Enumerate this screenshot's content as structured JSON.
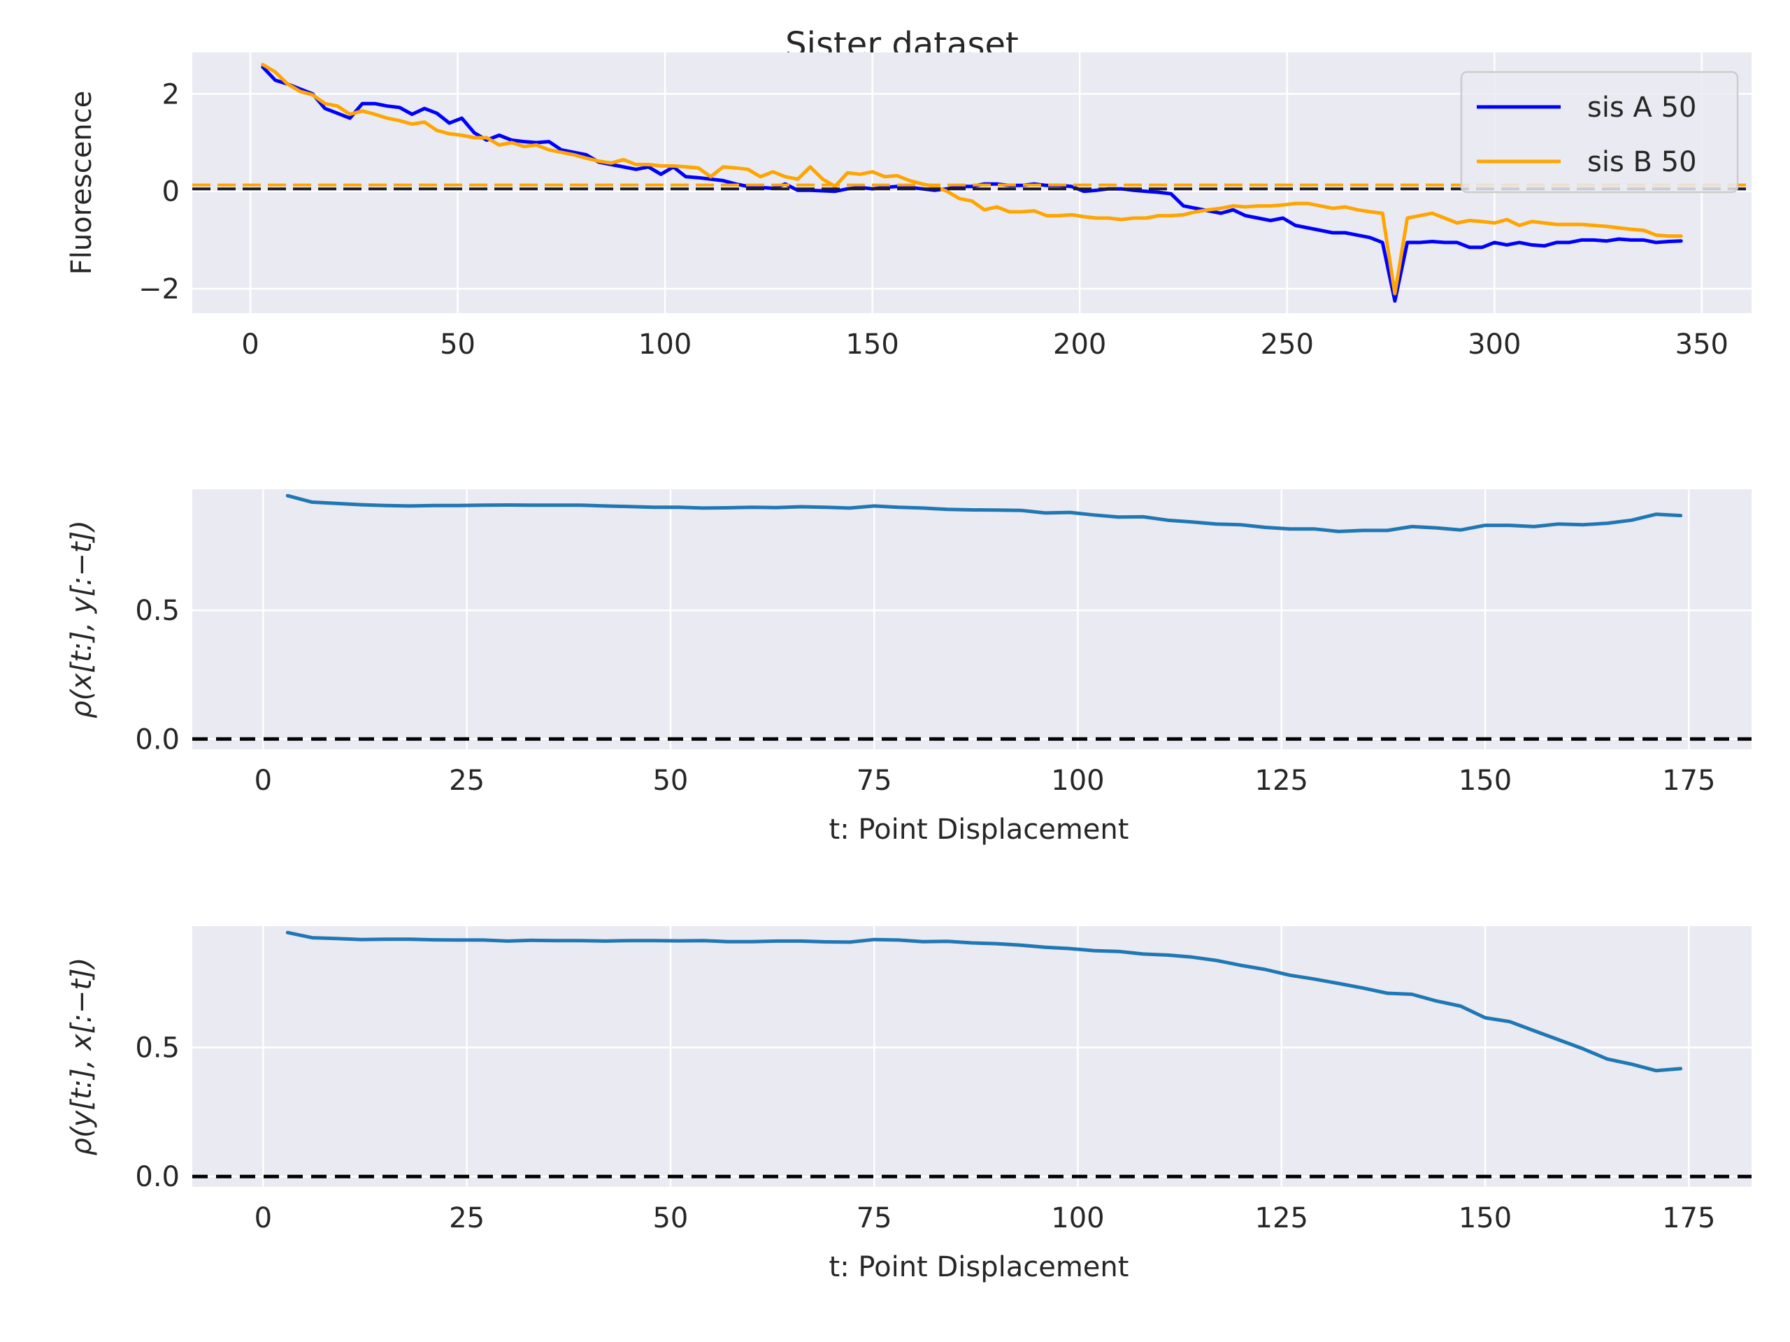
{
  "figure_title": "Sister dataset",
  "colors": {
    "axes_bg": "#eaeaf2",
    "grid": "#ffffff",
    "sis_a": "#0000ff",
    "sis_b": "#ffa500",
    "corr": "#1f77b4",
    "zero_line": "#000000"
  },
  "chart_data": [
    {
      "type": "line",
      "title": "",
      "xlabel": "",
      "ylabel": "Fluorescence",
      "xlim": [
        -14,
        362
      ],
      "ylim": [
        -2.5,
        2.85
      ],
      "xticks": [
        0,
        50,
        100,
        150,
        200,
        250,
        300,
        350
      ],
      "yticks": [
        -2,
        0,
        2
      ],
      "grid": true,
      "legend_position": "upper-right",
      "reference_lines": [
        {
          "y": 0.05,
          "color": "#1a1a2e",
          "style": "dashed"
        },
        {
          "y": 0.13,
          "color": "#ffa500",
          "style": "dashed"
        }
      ],
      "series": [
        {
          "name": "sis A 50",
          "color": "#0000ff",
          "x": [
            3,
            6,
            9,
            12,
            15,
            18,
            21,
            24,
            27,
            30,
            33,
            36,
            39,
            42,
            45,
            48,
            51,
            54,
            57,
            60,
            63,
            66,
            69,
            72,
            75,
            78,
            81,
            84,
            87,
            90,
            93,
            96,
            99,
            102,
            105,
            108,
            111,
            114,
            117,
            120,
            123,
            126,
            129,
            132,
            135,
            138,
            141,
            144,
            147,
            150,
            153,
            156,
            159,
            162,
            165,
            168,
            171,
            174,
            177,
            180,
            183,
            186,
            189,
            192,
            195,
            198,
            201,
            204,
            207,
            210,
            213,
            216,
            219,
            222,
            225,
            228,
            231,
            234,
            237,
            240,
            243,
            246,
            249,
            252,
            255,
            258,
            261,
            264,
            267,
            270,
            273,
            276,
            279,
            282,
            285,
            288,
            291,
            294,
            297,
            300,
            303,
            306,
            309,
            312,
            315,
            318,
            321,
            324,
            327,
            330,
            333,
            336,
            339,
            342,
            345
          ],
          "y": [
            2.55,
            2.28,
            2.2,
            2.1,
            2.0,
            1.7,
            1.6,
            1.5,
            1.8,
            1.8,
            1.75,
            1.72,
            1.58,
            1.7,
            1.6,
            1.4,
            1.5,
            1.2,
            1.05,
            1.15,
            1.05,
            1.02,
            1.0,
            1.02,
            0.85,
            0.8,
            0.75,
            0.6,
            0.55,
            0.5,
            0.45,
            0.5,
            0.35,
            0.5,
            0.3,
            0.28,
            0.25,
            0.22,
            0.15,
            0.1,
            0.08,
            0.06,
            0.15,
            0.02,
            0.02,
            0.01,
            0.0,
            0.05,
            0.08,
            0.05,
            0.08,
            0.1,
            0.08,
            0.05,
            0.02,
            0.05,
            0.1,
            0.1,
            0.15,
            0.15,
            0.12,
            0.12,
            0.15,
            0.12,
            0.12,
            0.1,
            0.0,
            0.02,
            0.05,
            0.05,
            0.02,
            0.0,
            -0.02,
            -0.05,
            -0.3,
            -0.35,
            -0.4,
            -0.45,
            -0.38,
            -0.5,
            -0.55,
            -0.6,
            -0.55,
            -0.7,
            -0.75,
            -0.8,
            -0.85,
            -0.85,
            -0.9,
            -0.95,
            -1.05,
            -2.25,
            -1.05,
            -1.05,
            -1.03,
            -1.05,
            -1.05,
            -1.15,
            -1.15,
            -1.05,
            -1.1,
            -1.05,
            -1.1,
            -1.12,
            -1.05,
            -1.05,
            -1.0,
            -1.0,
            -1.02,
            -0.98,
            -1.0,
            -1.0,
            -1.05,
            -1.03,
            -1.02
          ]
        },
        {
          "name": "sis B 50",
          "color": "#ffa500",
          "x": [
            3,
            6,
            9,
            12,
            15,
            18,
            21,
            24,
            27,
            30,
            33,
            36,
            39,
            42,
            45,
            48,
            51,
            54,
            57,
            60,
            63,
            66,
            69,
            72,
            75,
            78,
            81,
            84,
            87,
            90,
            93,
            96,
            99,
            102,
            105,
            108,
            111,
            114,
            117,
            120,
            123,
            126,
            129,
            132,
            135,
            138,
            141,
            144,
            147,
            150,
            153,
            156,
            159,
            162,
            165,
            168,
            171,
            174,
            177,
            180,
            183,
            186,
            189,
            192,
            195,
            198,
            201,
            204,
            207,
            210,
            213,
            216,
            219,
            222,
            225,
            228,
            231,
            234,
            237,
            240,
            243,
            246,
            249,
            252,
            255,
            258,
            261,
            264,
            267,
            270,
            273,
            276,
            279,
            282,
            285,
            288,
            291,
            294,
            297,
            300,
            303,
            306,
            309,
            312,
            315,
            318,
            321,
            324,
            327,
            330,
            333,
            336,
            339,
            342,
            345
          ],
          "y": [
            2.6,
            2.45,
            2.2,
            2.05,
            1.98,
            1.8,
            1.75,
            1.58,
            1.65,
            1.58,
            1.5,
            1.45,
            1.38,
            1.42,
            1.25,
            1.18,
            1.15,
            1.1,
            1.1,
            0.95,
            1.0,
            0.92,
            0.95,
            0.85,
            0.8,
            0.75,
            0.68,
            0.62,
            0.58,
            0.65,
            0.55,
            0.55,
            0.52,
            0.52,
            0.5,
            0.48,
            0.3,
            0.5,
            0.48,
            0.45,
            0.3,
            0.4,
            0.3,
            0.25,
            0.5,
            0.25,
            0.1,
            0.38,
            0.35,
            0.4,
            0.3,
            0.32,
            0.22,
            0.15,
            0.1,
            0.0,
            -0.15,
            -0.2,
            -0.38,
            -0.32,
            -0.42,
            -0.42,
            -0.4,
            -0.5,
            -0.5,
            -0.48,
            -0.52,
            -0.55,
            -0.55,
            -0.58,
            -0.55,
            -0.55,
            -0.5,
            -0.5,
            -0.48,
            -0.42,
            -0.38,
            -0.35,
            -0.3,
            -0.32,
            -0.3,
            -0.3,
            -0.28,
            -0.25,
            -0.25,
            -0.3,
            -0.35,
            -0.32,
            -0.38,
            -0.42,
            -0.45,
            -2.1,
            -0.55,
            -0.5,
            -0.45,
            -0.55,
            -0.65,
            -0.6,
            -0.62,
            -0.65,
            -0.58,
            -0.7,
            -0.62,
            -0.65,
            -0.68,
            -0.68,
            -0.68,
            -0.7,
            -0.72,
            -0.75,
            -0.78,
            -0.8,
            -0.9,
            -0.92,
            -0.92
          ]
        }
      ]
    },
    {
      "type": "line",
      "title": "",
      "xlabel": "t: Point Displacement",
      "ylabel": "ρ(x[t:], y[:−t])",
      "xlim": [
        -8.7,
        182.7
      ],
      "ylim": [
        -0.04,
        0.97
      ],
      "xticks": [
        0,
        25,
        50,
        75,
        100,
        125,
        150,
        175
      ],
      "yticks": [
        0.0,
        0.5
      ],
      "yticklabels": [
        "0.0",
        "0.5"
      ],
      "grid": true,
      "reference_lines": [
        {
          "y": 0.0,
          "color": "#000000",
          "style": "dashed"
        }
      ],
      "series": [
        {
          "color": "#1f77b4",
          "x": [
            3,
            6,
            9,
            12,
            15,
            18,
            21,
            24,
            27,
            30,
            33,
            36,
            39,
            42,
            45,
            48,
            51,
            54,
            57,
            60,
            63,
            66,
            69,
            72,
            75,
            78,
            81,
            84,
            87,
            90,
            93,
            96,
            99,
            102,
            105,
            108,
            111,
            114,
            117,
            120,
            123,
            126,
            129,
            132,
            135,
            138,
            141,
            144,
            147,
            150,
            153,
            156,
            159,
            162,
            165,
            168,
            171,
            174
          ],
          "y": [
            0.945,
            0.92,
            0.915,
            0.91,
            0.907,
            0.905,
            0.907,
            0.907,
            0.908,
            0.909,
            0.908,
            0.908,
            0.908,
            0.905,
            0.903,
            0.9,
            0.9,
            0.897,
            0.898,
            0.9,
            0.899,
            0.902,
            0.9,
            0.897,
            0.905,
            0.9,
            0.897,
            0.892,
            0.89,
            0.889,
            0.888,
            0.878,
            0.88,
            0.87,
            0.862,
            0.863,
            0.85,
            0.843,
            0.835,
            0.832,
            0.822,
            0.816,
            0.816,
            0.806,
            0.81,
            0.81,
            0.825,
            0.82,
            0.812,
            0.83,
            0.83,
            0.825,
            0.835,
            0.832,
            0.838,
            0.85,
            0.873,
            0.868
          ]
        }
      ]
    },
    {
      "type": "line",
      "title": "",
      "xlabel": "t: Point Displacement",
      "ylabel": "ρ(y[t:], x[:−t])",
      "xlim": [
        -8.7,
        182.7
      ],
      "ylim": [
        -0.04,
        0.97
      ],
      "xticks": [
        0,
        25,
        50,
        75,
        100,
        125,
        150,
        175
      ],
      "yticks": [
        0.0,
        0.5
      ],
      "yticklabels": [
        "0.0",
        "0.5"
      ],
      "grid": true,
      "reference_lines": [
        {
          "y": 0.0,
          "color": "#000000",
          "style": "dashed"
        }
      ],
      "series": [
        {
          "color": "#1f77b4",
          "x": [
            3,
            6,
            9,
            12,
            15,
            18,
            21,
            24,
            27,
            30,
            33,
            36,
            39,
            42,
            45,
            48,
            51,
            54,
            57,
            60,
            63,
            66,
            69,
            72,
            75,
            78,
            81,
            84,
            87,
            90,
            93,
            96,
            99,
            102,
            105,
            108,
            111,
            114,
            117,
            120,
            123,
            126,
            129,
            132,
            135,
            138,
            141,
            144,
            147,
            150,
            153,
            156,
            159,
            162,
            165,
            168,
            171,
            174
          ],
          "y": [
            0.945,
            0.925,
            0.922,
            0.918,
            0.919,
            0.919,
            0.917,
            0.916,
            0.916,
            0.912,
            0.915,
            0.914,
            0.914,
            0.912,
            0.914,
            0.914,
            0.913,
            0.914,
            0.91,
            0.91,
            0.912,
            0.912,
            0.909,
            0.908,
            0.918,
            0.916,
            0.91,
            0.911,
            0.905,
            0.902,
            0.896,
            0.888,
            0.883,
            0.875,
            0.872,
            0.862,
            0.858,
            0.85,
            0.837,
            0.818,
            0.802,
            0.78,
            0.765,
            0.748,
            0.73,
            0.71,
            0.706,
            0.68,
            0.66,
            0.615,
            0.6,
            0.565,
            0.53,
            0.495,
            0.455,
            0.435,
            0.41,
            0.418
          ]
        }
      ]
    }
  ]
}
